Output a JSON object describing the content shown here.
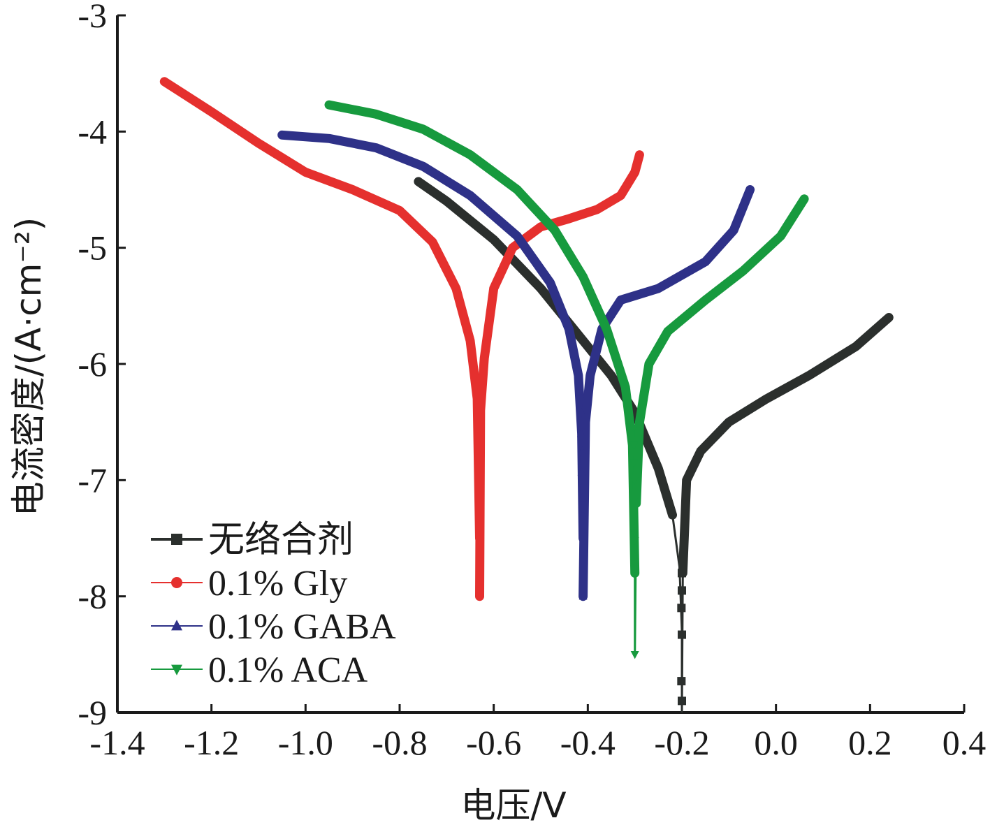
{
  "chart_data": {
    "type": "line",
    "xlabel": "电压/V",
    "ylabel": "电流密度/(A·cm⁻²)",
    "xlim": [
      -1.4,
      0.4
    ],
    "ylim": [
      -9,
      -3
    ],
    "xticks": [
      "-1.4",
      "-1.2",
      "-1.0",
      "-0.8",
      "-0.6",
      "-0.4",
      "-0.2",
      "0.0",
      "0.2",
      "0.4"
    ],
    "yticks": [
      "-3",
      "-4",
      "-5",
      "-6",
      "-7",
      "-8",
      "-9"
    ],
    "grid": false,
    "legend_position": "bottom-left",
    "series": [
      {
        "name": "无络合剂",
        "color": "#2b2f2d",
        "marker": "square",
        "branch_style": "thick",
        "points": [
          [
            -0.76,
            -4.43
          ],
          [
            -0.7,
            -4.6
          ],
          [
            -0.6,
            -4.93
          ],
          [
            -0.5,
            -5.35
          ],
          [
            -0.42,
            -5.75
          ],
          [
            -0.35,
            -6.1
          ],
          [
            -0.3,
            -6.42
          ],
          [
            -0.25,
            -6.9
          ],
          [
            -0.22,
            -7.3
          ],
          [
            -0.205,
            -7.75
          ],
          [
            -0.2,
            -8.3
          ],
          [
            -0.2,
            -9.0
          ],
          [
            -0.198,
            -7.8
          ],
          [
            -0.19,
            -7.0
          ],
          [
            -0.16,
            -6.75
          ],
          [
            -0.1,
            -6.5
          ],
          [
            -0.02,
            -6.3
          ],
          [
            0.07,
            -6.1
          ],
          [
            0.17,
            -5.85
          ],
          [
            0.24,
            -5.6
          ]
        ],
        "markers": [
          [
            -0.2,
            -7.8
          ],
          [
            -0.2,
            -7.95
          ],
          [
            -0.201,
            -8.1
          ],
          [
            -0.2,
            -8.33
          ],
          [
            -0.201,
            -8.73
          ],
          [
            -0.2,
            -8.9
          ]
        ]
      },
      {
        "name": "0.1% Gly",
        "color": "#e5302e",
        "marker": "circle",
        "points": [
          [
            -1.3,
            -3.57
          ],
          [
            -1.2,
            -3.83
          ],
          [
            -1.1,
            -4.1
          ],
          [
            -1.0,
            -4.35
          ],
          [
            -0.9,
            -4.5
          ],
          [
            -0.8,
            -4.68
          ],
          [
            -0.73,
            -4.95
          ],
          [
            -0.68,
            -5.35
          ],
          [
            -0.65,
            -5.8
          ],
          [
            -0.635,
            -6.3
          ],
          [
            -0.63,
            -7.5
          ],
          [
            -0.63,
            -8.0
          ],
          [
            -0.628,
            -6.4
          ],
          [
            -0.62,
            -5.95
          ],
          [
            -0.6,
            -5.35
          ],
          [
            -0.56,
            -5.0
          ],
          [
            -0.5,
            -4.82
          ],
          [
            -0.44,
            -4.75
          ],
          [
            -0.38,
            -4.67
          ],
          [
            -0.33,
            -4.55
          ],
          [
            -0.3,
            -4.35
          ],
          [
            -0.29,
            -4.2
          ]
        ],
        "markers": [
          [
            -0.633,
            -6.15
          ],
          [
            -0.634,
            -6.26
          ],
          [
            -0.632,
            -6.4
          ],
          [
            -0.631,
            -6.56
          ],
          [
            -0.632,
            -6.82
          ],
          [
            -0.632,
            -6.88
          ],
          [
            -0.63,
            -8.0
          ]
        ]
      },
      {
        "name": "0.1% GABA",
        "color": "#2e3188",
        "marker": "triangle-up",
        "points": [
          [
            -1.05,
            -4.03
          ],
          [
            -0.95,
            -4.06
          ],
          [
            -0.85,
            -4.14
          ],
          [
            -0.75,
            -4.3
          ],
          [
            -0.65,
            -4.55
          ],
          [
            -0.55,
            -4.9
          ],
          [
            -0.48,
            -5.3
          ],
          [
            -0.44,
            -5.7
          ],
          [
            -0.42,
            -6.1
          ],
          [
            -0.413,
            -6.6
          ],
          [
            -0.41,
            -7.5
          ],
          [
            -0.41,
            -8.0
          ],
          [
            -0.405,
            -6.5
          ],
          [
            -0.395,
            -6.1
          ],
          [
            -0.37,
            -5.7
          ],
          [
            -0.33,
            -5.45
          ],
          [
            -0.25,
            -5.35
          ],
          [
            -0.15,
            -5.12
          ],
          [
            -0.09,
            -4.85
          ],
          [
            -0.055,
            -4.5
          ]
        ],
        "markers": [
          [
            -0.413,
            -6.3
          ],
          [
            -0.413,
            -6.42
          ],
          [
            -0.414,
            -6.6
          ],
          [
            -0.412,
            -6.75
          ],
          [
            -0.413,
            -6.93
          ],
          [
            -0.411,
            -7.15
          ],
          [
            -0.411,
            -7.3
          ],
          [
            -0.41,
            -8.0
          ]
        ]
      },
      {
        "name": "0.1% ACA",
        "color": "#179a3e",
        "marker": "triangle-down",
        "points": [
          [
            -0.95,
            -3.77
          ],
          [
            -0.85,
            -3.85
          ],
          [
            -0.75,
            -3.98
          ],
          [
            -0.65,
            -4.2
          ],
          [
            -0.55,
            -4.5
          ],
          [
            -0.47,
            -4.85
          ],
          [
            -0.41,
            -5.25
          ],
          [
            -0.36,
            -5.7
          ],
          [
            -0.32,
            -6.2
          ],
          [
            -0.305,
            -6.7
          ],
          [
            -0.3,
            -7.8
          ],
          [
            -0.3,
            -8.5
          ],
          [
            -0.297,
            -7.2
          ],
          [
            -0.29,
            -6.5
          ],
          [
            -0.27,
            -6.0
          ],
          [
            -0.23,
            -5.72
          ],
          [
            -0.15,
            -5.45
          ],
          [
            -0.07,
            -5.2
          ],
          [
            0.01,
            -4.9
          ],
          [
            0.06,
            -4.58
          ]
        ],
        "markers": [
          [
            -0.302,
            -6.55
          ],
          [
            -0.302,
            -6.7
          ],
          [
            -0.302,
            -6.85
          ],
          [
            -0.301,
            -7.0
          ],
          [
            -0.302,
            -7.18
          ],
          [
            -0.301,
            -7.45
          ],
          [
            -0.3,
            -7.52
          ],
          [
            -0.3,
            -8.5
          ]
        ]
      }
    ]
  }
}
